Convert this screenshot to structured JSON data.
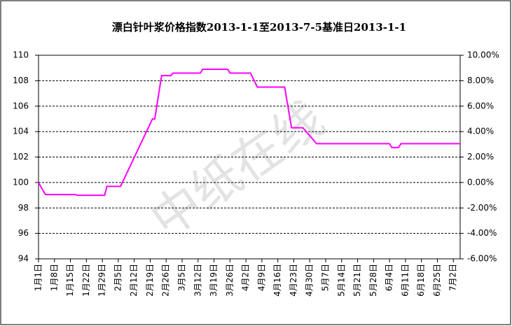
{
  "chart_data": {
    "type": "line",
    "title": "漂白针叶浆价格指数2013-1-1至2013-7-5基准日2013-1-1",
    "watermark": "中纸在线",
    "x": [
      "2013-01-01",
      "2013-01-04",
      "2013-01-17",
      "2013-01-18",
      "2013-01-30",
      "2013-01-31",
      "2013-02-06",
      "2013-02-20",
      "2013-02-21",
      "2013-02-24",
      "2013-02-28",
      "2013-03-01",
      "2013-03-13",
      "2013-03-14",
      "2013-03-25",
      "2013-03-26",
      "2013-04-04",
      "2013-04-07",
      "2013-04-19",
      "2013-04-22",
      "2013-04-27",
      "2013-05-03",
      "2013-06-04",
      "2013-06-05",
      "2013-06-08",
      "2013-06-09",
      "2013-07-05"
    ],
    "series": [
      {
        "color": "#ff00ff",
        "values": [
          100,
          99.05,
          99.05,
          99.0,
          99.0,
          99.7,
          99.7,
          105.0,
          105.0,
          108.4,
          108.4,
          108.6,
          108.6,
          108.9,
          108.9,
          108.6,
          108.6,
          107.5,
          107.5,
          104.3,
          104.3,
          103.05,
          103.05,
          102.75,
          102.75,
          103.05,
          103.05
        ]
      }
    ],
    "xlim": [
      "2013-01-01",
      "2013-07-05"
    ],
    "xticks": [
      {
        "value": "2013-01-01",
        "label": "1月1日"
      },
      {
        "value": "2013-01-08",
        "label": "1月8日"
      },
      {
        "value": "2013-01-15",
        "label": "1月15日"
      },
      {
        "value": "2013-01-22",
        "label": "1月22日"
      },
      {
        "value": "2013-01-29",
        "label": "1月29日"
      },
      {
        "value": "2013-02-05",
        "label": "2月5日"
      },
      {
        "value": "2013-02-12",
        "label": "2月12日"
      },
      {
        "value": "2013-02-19",
        "label": "2月19日"
      },
      {
        "value": "2013-02-26",
        "label": "2月26日"
      },
      {
        "value": "2013-03-05",
        "label": "3月5日"
      },
      {
        "value": "2013-03-12",
        "label": "3月12日"
      },
      {
        "value": "2013-03-19",
        "label": "3月19日"
      },
      {
        "value": "2013-03-26",
        "label": "3月26日"
      },
      {
        "value": "2013-04-02",
        "label": "4月2日"
      },
      {
        "value": "2013-04-09",
        "label": "4月9日"
      },
      {
        "value": "2013-04-16",
        "label": "4月16日"
      },
      {
        "value": "2013-04-23",
        "label": "4月23日"
      },
      {
        "value": "2013-04-30",
        "label": "4月30日"
      },
      {
        "value": "2013-05-07",
        "label": "5月7日"
      },
      {
        "value": "2013-05-14",
        "label": "5月14日"
      },
      {
        "value": "2013-05-21",
        "label": "5月21日"
      },
      {
        "value": "2013-05-28",
        "label": "5月28日"
      },
      {
        "value": "2013-06-04",
        "label": "6月4日"
      },
      {
        "value": "2013-06-11",
        "label": "6月11日"
      },
      {
        "value": "2013-06-18",
        "label": "6月18日"
      },
      {
        "value": "2013-06-25",
        "label": "6月25日"
      },
      {
        "value": "2013-07-02",
        "label": "7月2日"
      }
    ],
    "ylim": [
      94,
      110
    ],
    "yticks": [
      94,
      96,
      98,
      100,
      102,
      104,
      106,
      108,
      110
    ],
    "y2lim": [
      -6,
      10
    ],
    "y2ticks": [
      {
        "value": -6,
        "label": "-6.00%"
      },
      {
        "value": -4,
        "label": "-4.00%"
      },
      {
        "value": -2,
        "label": "-2.00%"
      },
      {
        "value": 0,
        "label": "0.00%"
      },
      {
        "value": 2,
        "label": "2.00%"
      },
      {
        "value": 4,
        "label": "4.00%"
      },
      {
        "value": 6,
        "label": "6.00%"
      },
      {
        "value": 8,
        "label": "8.00%"
      },
      {
        "value": 10,
        "label": "10.00%"
      }
    ],
    "grid": true
  }
}
